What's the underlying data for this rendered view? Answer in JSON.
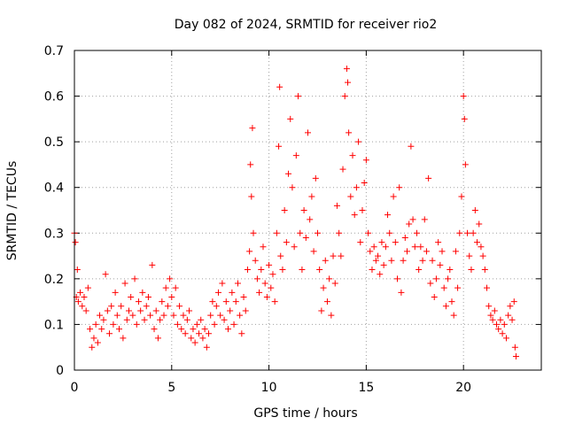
{
  "chart_data": {
    "type": "scatter",
    "title": "Day 082 of 2024, SRMTID for receiver rio2",
    "xlabel": "GPS time / hours",
    "ylabel": "SRMTID / TECUs",
    "xlim": [
      0,
      24
    ],
    "ylim": [
      0,
      0.7
    ],
    "xticks": [
      0,
      5,
      10,
      15,
      20
    ],
    "yticks": [
      0,
      0.1,
      0.2,
      0.3,
      0.4,
      0.5,
      0.6,
      0.7
    ],
    "grid": true,
    "marker": "+",
    "colors": {
      "series": "#ff0000",
      "grid": "#a0a0a0",
      "axis": "#000000"
    },
    "series": [
      {
        "name": "rio2",
        "points": [
          [
            0.0,
            0.3
          ],
          [
            0.05,
            0.28
          ],
          [
            0.1,
            0.16
          ],
          [
            0.15,
            0.22
          ],
          [
            0.2,
            0.15
          ],
          [
            0.3,
            0.17
          ],
          [
            0.4,
            0.14
          ],
          [
            0.5,
            0.16
          ],
          [
            0.6,
            0.13
          ],
          [
            0.7,
            0.18
          ],
          [
            0.8,
            0.09
          ],
          [
            0.9,
            0.05
          ],
          [
            1.0,
            0.07
          ],
          [
            1.1,
            0.1
          ],
          [
            1.2,
            0.06
          ],
          [
            1.3,
            0.12
          ],
          [
            1.4,
            0.09
          ],
          [
            1.5,
            0.11
          ],
          [
            1.6,
            0.21
          ],
          [
            1.7,
            0.13
          ],
          [
            1.8,
            0.08
          ],
          [
            1.9,
            0.14
          ],
          [
            2.0,
            0.1
          ],
          [
            2.1,
            0.17
          ],
          [
            2.2,
            0.12
          ],
          [
            2.3,
            0.09
          ],
          [
            2.4,
            0.14
          ],
          [
            2.5,
            0.07
          ],
          [
            2.6,
            0.19
          ],
          [
            2.7,
            0.11
          ],
          [
            2.8,
            0.13
          ],
          [
            2.9,
            0.16
          ],
          [
            3.0,
            0.12
          ],
          [
            3.1,
            0.2
          ],
          [
            3.2,
            0.1
          ],
          [
            3.3,
            0.15
          ],
          [
            3.4,
            0.13
          ],
          [
            3.5,
            0.17
          ],
          [
            3.6,
            0.11
          ],
          [
            3.7,
            0.14
          ],
          [
            3.8,
            0.16
          ],
          [
            3.9,
            0.12
          ],
          [
            4.0,
            0.23
          ],
          [
            4.1,
            0.09
          ],
          [
            4.2,
            0.13
          ],
          [
            4.3,
            0.07
          ],
          [
            4.4,
            0.11
          ],
          [
            4.5,
            0.15
          ],
          [
            4.6,
            0.12
          ],
          [
            4.7,
            0.18
          ],
          [
            4.8,
            0.14
          ],
          [
            4.9,
            0.2
          ],
          [
            5.0,
            0.16
          ],
          [
            5.1,
            0.12
          ],
          [
            5.2,
            0.18
          ],
          [
            5.3,
            0.1
          ],
          [
            5.4,
            0.14
          ],
          [
            5.5,
            0.09
          ],
          [
            5.6,
            0.12
          ],
          [
            5.7,
            0.08
          ],
          [
            5.8,
            0.11
          ],
          [
            5.9,
            0.13
          ],
          [
            6.0,
            0.07
          ],
          [
            6.1,
            0.09
          ],
          [
            6.2,
            0.06
          ],
          [
            6.3,
            0.1
          ],
          [
            6.4,
            0.08
          ],
          [
            6.5,
            0.11
          ],
          [
            6.6,
            0.07
          ],
          [
            6.7,
            0.09
          ],
          [
            6.8,
            0.05
          ],
          [
            6.9,
            0.08
          ],
          [
            7.0,
            0.12
          ],
          [
            7.1,
            0.15
          ],
          [
            7.2,
            0.1
          ],
          [
            7.3,
            0.14
          ],
          [
            7.4,
            0.17
          ],
          [
            7.5,
            0.12
          ],
          [
            7.6,
            0.19
          ],
          [
            7.7,
            0.11
          ],
          [
            7.8,
            0.15
          ],
          [
            7.9,
            0.09
          ],
          [
            8.0,
            0.13
          ],
          [
            8.1,
            0.17
          ],
          [
            8.2,
            0.1
          ],
          [
            8.3,
            0.15
          ],
          [
            8.4,
            0.19
          ],
          [
            8.5,
            0.12
          ],
          [
            8.6,
            0.08
          ],
          [
            8.7,
            0.16
          ],
          [
            8.8,
            0.13
          ],
          [
            8.9,
            0.22
          ],
          [
            9.0,
            0.26
          ],
          [
            9.05,
            0.45
          ],
          [
            9.1,
            0.38
          ],
          [
            9.15,
            0.53
          ],
          [
            9.2,
            0.3
          ],
          [
            9.3,
            0.24
          ],
          [
            9.4,
            0.2
          ],
          [
            9.5,
            0.17
          ],
          [
            9.6,
            0.22
          ],
          [
            9.7,
            0.27
          ],
          [
            9.8,
            0.19
          ],
          [
            9.9,
            0.16
          ],
          [
            10.0,
            0.23
          ],
          [
            10.1,
            0.18
          ],
          [
            10.2,
            0.21
          ],
          [
            10.3,
            0.15
          ],
          [
            10.4,
            0.3
          ],
          [
            10.5,
            0.49
          ],
          [
            10.55,
            0.62
          ],
          [
            10.6,
            0.25
          ],
          [
            10.7,
            0.22
          ],
          [
            10.8,
            0.35
          ],
          [
            10.9,
            0.28
          ],
          [
            11.0,
            0.43
          ],
          [
            11.1,
            0.55
          ],
          [
            11.2,
            0.4
          ],
          [
            11.3,
            0.27
          ],
          [
            11.4,
            0.47
          ],
          [
            11.5,
            0.6
          ],
          [
            11.6,
            0.3
          ],
          [
            11.7,
            0.22
          ],
          [
            11.8,
            0.35
          ],
          [
            11.9,
            0.29
          ],
          [
            12.0,
            0.52
          ],
          [
            12.1,
            0.33
          ],
          [
            12.2,
            0.38
          ],
          [
            12.3,
            0.26
          ],
          [
            12.4,
            0.42
          ],
          [
            12.5,
            0.3
          ],
          [
            12.6,
            0.22
          ],
          [
            12.7,
            0.13
          ],
          [
            12.8,
            0.18
          ],
          [
            12.9,
            0.24
          ],
          [
            13.0,
            0.15
          ],
          [
            13.1,
            0.2
          ],
          [
            13.2,
            0.12
          ],
          [
            13.3,
            0.25
          ],
          [
            13.4,
            0.19
          ],
          [
            13.5,
            0.36
          ],
          [
            13.6,
            0.3
          ],
          [
            13.7,
            0.25
          ],
          [
            13.8,
            0.44
          ],
          [
            13.9,
            0.6
          ],
          [
            14.0,
            0.66
          ],
          [
            14.05,
            0.63
          ],
          [
            14.1,
            0.52
          ],
          [
            14.2,
            0.38
          ],
          [
            14.3,
            0.47
          ],
          [
            14.4,
            0.34
          ],
          [
            14.5,
            0.4
          ],
          [
            14.6,
            0.5
          ],
          [
            14.7,
            0.28
          ],
          [
            14.8,
            0.35
          ],
          [
            14.9,
            0.41
          ],
          [
            15.0,
            0.46
          ],
          [
            15.1,
            0.3
          ],
          [
            15.2,
            0.26
          ],
          [
            15.3,
            0.22
          ],
          [
            15.4,
            0.27
          ],
          [
            15.5,
            0.24
          ],
          [
            15.6,
            0.25
          ],
          [
            15.7,
            0.21
          ],
          [
            15.8,
            0.28
          ],
          [
            15.9,
            0.23
          ],
          [
            16.0,
            0.27
          ],
          [
            16.1,
            0.34
          ],
          [
            16.2,
            0.3
          ],
          [
            16.3,
            0.24
          ],
          [
            16.4,
            0.38
          ],
          [
            16.5,
            0.28
          ],
          [
            16.6,
            0.2
          ],
          [
            16.7,
            0.4
          ],
          [
            16.8,
            0.17
          ],
          [
            16.9,
            0.24
          ],
          [
            17.0,
            0.29
          ],
          [
            17.1,
            0.26
          ],
          [
            17.2,
            0.32
          ],
          [
            17.3,
            0.49
          ],
          [
            17.4,
            0.33
          ],
          [
            17.5,
            0.27
          ],
          [
            17.6,
            0.3
          ],
          [
            17.7,
            0.22
          ],
          [
            17.8,
            0.27
          ],
          [
            17.9,
            0.24
          ],
          [
            18.0,
            0.33
          ],
          [
            18.1,
            0.26
          ],
          [
            18.2,
            0.42
          ],
          [
            18.3,
            0.19
          ],
          [
            18.4,
            0.24
          ],
          [
            18.5,
            0.16
          ],
          [
            18.6,
            0.2
          ],
          [
            18.7,
            0.28
          ],
          [
            18.8,
            0.23
          ],
          [
            18.9,
            0.26
          ],
          [
            19.0,
            0.18
          ],
          [
            19.1,
            0.14
          ],
          [
            19.2,
            0.2
          ],
          [
            19.3,
            0.22
          ],
          [
            19.4,
            0.15
          ],
          [
            19.5,
            0.12
          ],
          [
            19.6,
            0.26
          ],
          [
            19.7,
            0.18
          ],
          [
            19.8,
            0.3
          ],
          [
            19.9,
            0.38
          ],
          [
            20.0,
            0.6
          ],
          [
            20.05,
            0.55
          ],
          [
            20.1,
            0.45
          ],
          [
            20.2,
            0.3
          ],
          [
            20.3,
            0.25
          ],
          [
            20.4,
            0.22
          ],
          [
            20.5,
            0.3
          ],
          [
            20.6,
            0.35
          ],
          [
            20.7,
            0.28
          ],
          [
            20.8,
            0.32
          ],
          [
            20.9,
            0.27
          ],
          [
            21.0,
            0.25
          ],
          [
            21.1,
            0.22
          ],
          [
            21.2,
            0.18
          ],
          [
            21.3,
            0.14
          ],
          [
            21.4,
            0.12
          ],
          [
            21.5,
            0.11
          ],
          [
            21.6,
            0.13
          ],
          [
            21.7,
            0.1
          ],
          [
            21.8,
            0.09
          ],
          [
            21.9,
            0.11
          ],
          [
            22.0,
            0.08
          ],
          [
            22.1,
            0.1
          ],
          [
            22.2,
            0.07
          ],
          [
            22.3,
            0.12
          ],
          [
            22.4,
            0.14
          ],
          [
            22.5,
            0.11
          ],
          [
            22.6,
            0.15
          ],
          [
            22.65,
            0.05
          ],
          [
            22.7,
            0.03
          ]
        ]
      }
    ]
  }
}
